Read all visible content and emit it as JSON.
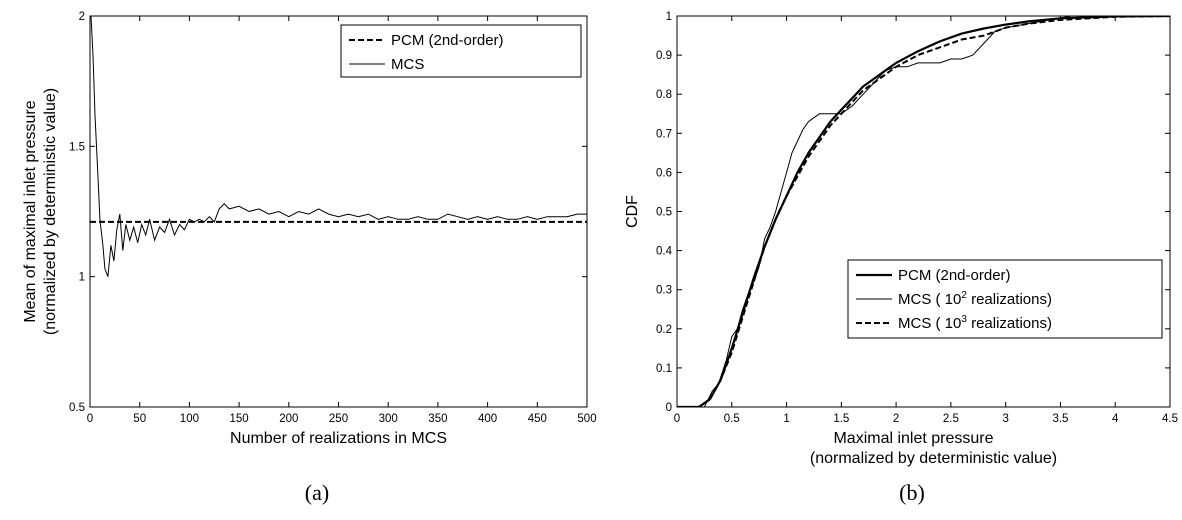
{
  "panel_labels": [
    "(a)",
    "(b)"
  ],
  "chart_data": [
    {
      "type": "line",
      "xlabel": "Number of realizations in MCS",
      "ylabel_lines": [
        "Mean of maximal inlet pressure",
        "(normalized by deterministic value)"
      ],
      "xlim": [
        0,
        500
      ],
      "ylim": [
        0.5,
        2
      ],
      "xticks": [
        0,
        50,
        100,
        150,
        200,
        250,
        300,
        350,
        400,
        450,
        500
      ],
      "yticks": [
        0.5,
        1,
        1.5,
        2
      ],
      "xtick_labels": [
        "0",
        "50",
        "100",
        "150",
        "200",
        "250",
        "300",
        "350",
        "400",
        "450",
        "500"
      ],
      "ytick_labels": [
        "0.5",
        "1",
        "1.5",
        "2"
      ],
      "grid": false,
      "legend_position": "top-right",
      "series": [
        {
          "name": "PCM (2nd-order)",
          "style": "dashed-thick",
          "x": [
            0,
            500
          ],
          "y": [
            1.21,
            1.21
          ]
        },
        {
          "name": "MCS",
          "style": "solid-thin",
          "x": [
            1,
            3,
            5,
            8,
            10,
            13,
            15,
            18,
            21,
            24,
            27,
            30,
            33,
            36,
            40,
            44,
            48,
            52,
            56,
            60,
            65,
            70,
            75,
            80,
            85,
            90,
            95,
            100,
            105,
            110,
            115,
            120,
            125,
            130,
            135,
            140,
            150,
            160,
            170,
            180,
            190,
            200,
            210,
            220,
            230,
            240,
            250,
            260,
            270,
            280,
            290,
            300,
            310,
            320,
            330,
            340,
            350,
            360,
            370,
            380,
            390,
            400,
            410,
            420,
            430,
            440,
            450,
            460,
            470,
            480,
            490,
            500
          ],
          "y": [
            2.0,
            1.85,
            1.62,
            1.38,
            1.22,
            1.12,
            1.03,
            1.0,
            1.12,
            1.06,
            1.18,
            1.24,
            1.1,
            1.2,
            1.14,
            1.19,
            1.13,
            1.2,
            1.16,
            1.22,
            1.14,
            1.19,
            1.17,
            1.22,
            1.16,
            1.2,
            1.18,
            1.22,
            1.21,
            1.22,
            1.21,
            1.23,
            1.21,
            1.26,
            1.28,
            1.26,
            1.27,
            1.25,
            1.26,
            1.24,
            1.25,
            1.23,
            1.25,
            1.24,
            1.26,
            1.24,
            1.23,
            1.24,
            1.23,
            1.24,
            1.22,
            1.23,
            1.22,
            1.22,
            1.23,
            1.22,
            1.22,
            1.24,
            1.23,
            1.22,
            1.23,
            1.22,
            1.23,
            1.22,
            1.22,
            1.23,
            1.22,
            1.23,
            1.23,
            1.23,
            1.24,
            1.24
          ]
        }
      ]
    },
    {
      "type": "line",
      "xlabel_lines": [
        "Maximal inlet pressure",
        "(normalized by deterministic value)"
      ],
      "ylabel": "CDF",
      "xlim": [
        0,
        4.5
      ],
      "ylim": [
        0,
        1
      ],
      "xticks": [
        0,
        0.5,
        1,
        1.5,
        2,
        2.5,
        3,
        3.5,
        4,
        4.5
      ],
      "yticks": [
        0,
        0.1,
        0.2,
        0.3,
        0.4,
        0.5,
        0.6,
        0.7,
        0.8,
        0.9,
        1
      ],
      "xtick_labels": [
        "0",
        "0.5",
        "1",
        "1.5",
        "2",
        "2.5",
        "3",
        "3.5",
        "4",
        "4.5"
      ],
      "ytick_labels": [
        "0",
        "0.1",
        "0.2",
        "0.3",
        "0.4",
        "0.5",
        "0.6",
        "0.7",
        "0.8",
        "0.9",
        "1"
      ],
      "grid": false,
      "legend_position": "bottom-right",
      "series": [
        {
          "name": "PCM (2nd-order)",
          "legend_parts": [
            "PCM (2nd-order)"
          ],
          "style": "solid-thick",
          "x": [
            0,
            0.2,
            0.3,
            0.4,
            0.5,
            0.6,
            0.7,
            0.8,
            0.9,
            1.0,
            1.1,
            1.2,
            1.3,
            1.4,
            1.5,
            1.6,
            1.7,
            1.8,
            1.9,
            2.0,
            2.2,
            2.4,
            2.6,
            2.8,
            3.0,
            3.2,
            3.5,
            4.0,
            4.5
          ],
          "y": [
            0,
            0.0,
            0.02,
            0.07,
            0.15,
            0.24,
            0.33,
            0.41,
            0.48,
            0.54,
            0.6,
            0.65,
            0.69,
            0.73,
            0.76,
            0.79,
            0.82,
            0.84,
            0.86,
            0.88,
            0.91,
            0.935,
            0.955,
            0.968,
            0.978,
            0.986,
            0.994,
            0.999,
            1.0
          ]
        },
        {
          "name": "MCS ( 10^2 realizations)",
          "legend_parts": [
            "MCS ( 10",
            "2",
            " realizations)"
          ],
          "style": "solid-thin",
          "x": [
            0,
            0.25,
            0.32,
            0.38,
            0.45,
            0.5,
            0.55,
            0.6,
            0.65,
            0.7,
            0.75,
            0.8,
            0.85,
            0.9,
            0.95,
            1.0,
            1.05,
            1.1,
            1.15,
            1.2,
            1.3,
            1.4,
            1.5,
            1.6,
            1.7,
            1.8,
            1.9,
            2.0,
            2.1,
            2.2,
            2.3,
            2.4,
            2.5,
            2.6,
            2.7,
            2.8,
            2.9,
            3.0,
            3.2,
            3.4,
            3.6,
            4.0,
            4.5
          ],
          "y": [
            0,
            0.0,
            0.04,
            0.06,
            0.12,
            0.18,
            0.2,
            0.25,
            0.29,
            0.32,
            0.36,
            0.43,
            0.46,
            0.5,
            0.55,
            0.6,
            0.65,
            0.68,
            0.71,
            0.73,
            0.75,
            0.75,
            0.75,
            0.77,
            0.8,
            0.83,
            0.86,
            0.87,
            0.87,
            0.88,
            0.88,
            0.88,
            0.89,
            0.89,
            0.9,
            0.93,
            0.96,
            0.97,
            0.98,
            0.99,
            1.0,
            1.0,
            1.0
          ]
        },
        {
          "name": "MCS ( 10^3 realizations)",
          "legend_parts": [
            "MCS ( 10",
            "3",
            " realizations)"
          ],
          "style": "dashed-thick",
          "x": [
            0,
            0.2,
            0.3,
            0.4,
            0.5,
            0.6,
            0.7,
            0.8,
            0.9,
            1.0,
            1.1,
            1.2,
            1.3,
            1.4,
            1.5,
            1.6,
            1.7,
            1.8,
            1.9,
            2.0,
            2.2,
            2.4,
            2.6,
            2.8,
            3.0,
            3.2,
            3.5,
            4.0,
            4.5
          ],
          "y": [
            0,
            0.0,
            0.02,
            0.07,
            0.14,
            0.23,
            0.32,
            0.41,
            0.48,
            0.54,
            0.59,
            0.64,
            0.68,
            0.72,
            0.75,
            0.78,
            0.81,
            0.83,
            0.85,
            0.87,
            0.9,
            0.92,
            0.94,
            0.95,
            0.97,
            0.98,
            0.99,
            0.998,
            1.0
          ]
        }
      ]
    }
  ]
}
